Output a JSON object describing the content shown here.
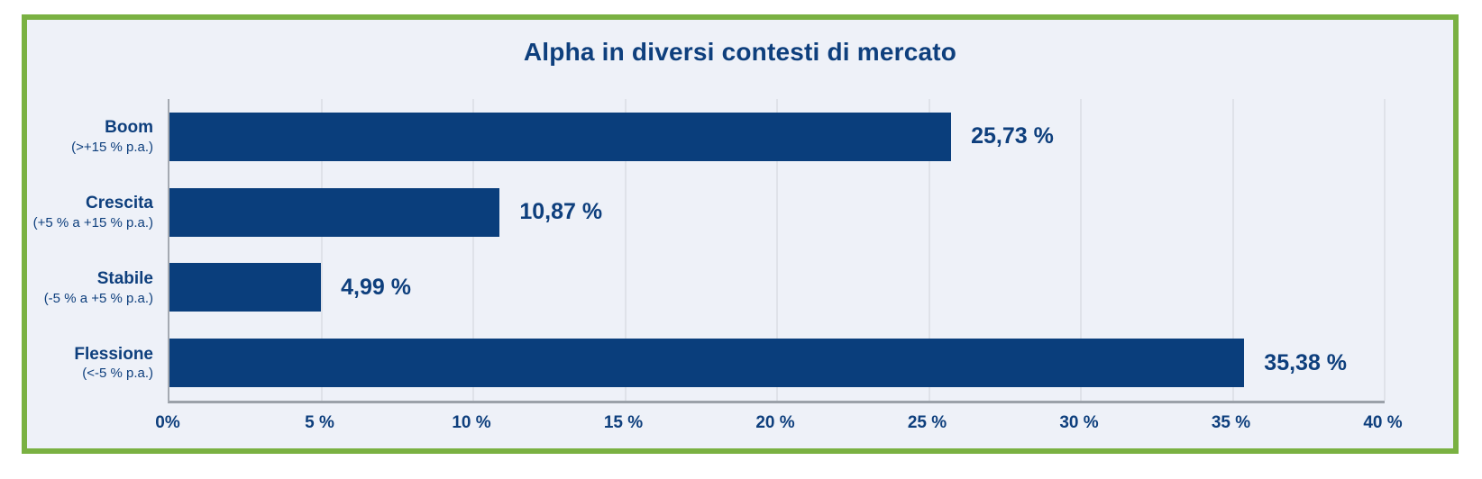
{
  "panel": {
    "background": "#eef1f8",
    "border_color": "#7ab142"
  },
  "chart_data": {
    "type": "bar",
    "orientation": "horizontal",
    "title": "Alpha in diversi contesti di mercato",
    "categories": [
      "Boom",
      "Crescita",
      "Stabile",
      "Flessione"
    ],
    "category_sublabels": [
      "(>+15 % p.a.)",
      "(+5 % a +15 % p.a.)",
      "(-5 % a +5 % p.a.)",
      "(<-5 % p.a.)"
    ],
    "values": [
      25.73,
      10.87,
      4.99,
      35.38
    ],
    "value_labels": [
      "25,73 %",
      "10,87 %",
      "4,99 %",
      "35,38 %"
    ],
    "xlim": [
      0,
      40
    ],
    "x_ticks": [
      0,
      5,
      10,
      15,
      20,
      25,
      30,
      35,
      40
    ],
    "x_tick_labels": [
      "0%",
      "5 %",
      "10 %",
      "15 %",
      "20 %",
      "25 %",
      "30 %",
      "35 %",
      "40 %"
    ],
    "bar_color": "#0a3e7c",
    "text_color": "#0e3f7d",
    "gridline_color": "#dfe2e9",
    "grid": true,
    "legend": false
  }
}
